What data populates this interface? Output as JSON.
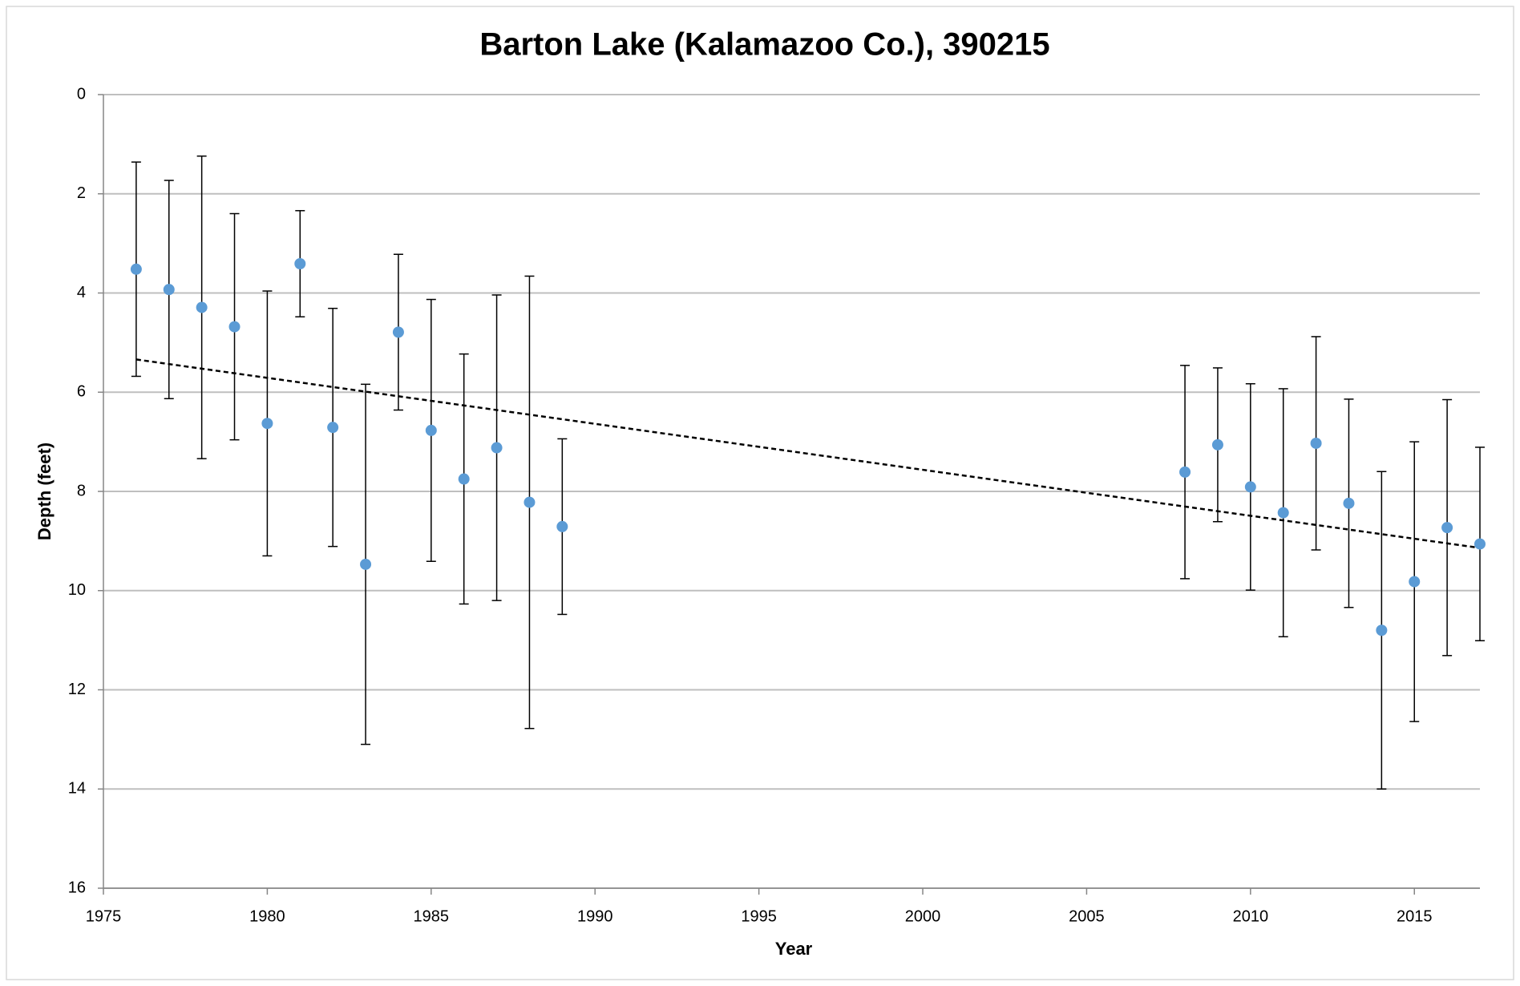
{
  "chart_data": {
    "type": "scatter",
    "title": "Barton Lake (Kalamazoo Co.), 390215",
    "x_label": "Year",
    "y_label": "Depth (feet)",
    "xlim": [
      1975,
      2017
    ],
    "xticks": [
      1975,
      1980,
      1985,
      1990,
      1995,
      2000,
      2005,
      2010,
      2015
    ],
    "ylim": [
      0,
      16
    ],
    "yticks": [
      0,
      2,
      4,
      6,
      8,
      10,
      12,
      14,
      16
    ],
    "y_inverted": true,
    "grid": true,
    "series": [
      {
        "color": "#5b9bd5",
        "x": [
          1976,
          1977,
          1978,
          1979,
          1980,
          1981,
          1982,
          1983,
          1984,
          1985,
          1986,
          1987,
          1988,
          1989,
          2008,
          2009,
          2010,
          2011,
          2012,
          2013,
          2014,
          2015,
          2016,
          2017
        ],
        "values": [
          3.52,
          3.93,
          4.29,
          4.68,
          6.63,
          3.41,
          6.71,
          9.47,
          4.79,
          6.77,
          7.75,
          7.12,
          8.22,
          8.71,
          7.61,
          7.06,
          7.91,
          8.43,
          7.03,
          8.24,
          10.8,
          9.82,
          8.73,
          9.06
        ],
        "errors": [
          2.16,
          2.2,
          3.05,
          2.28,
          2.67,
          1.07,
          2.4,
          3.63,
          1.57,
          2.64,
          2.52,
          3.08,
          4.56,
          1.77,
          2.15,
          1.55,
          2.08,
          2.5,
          2.15,
          2.1,
          3.2,
          2.82,
          2.58,
          1.95
        ]
      }
    ],
    "trendline": {
      "color": "#000000",
      "x": [
        1976,
        2017
      ],
      "values": [
        5.34,
        9.14
      ]
    }
  }
}
